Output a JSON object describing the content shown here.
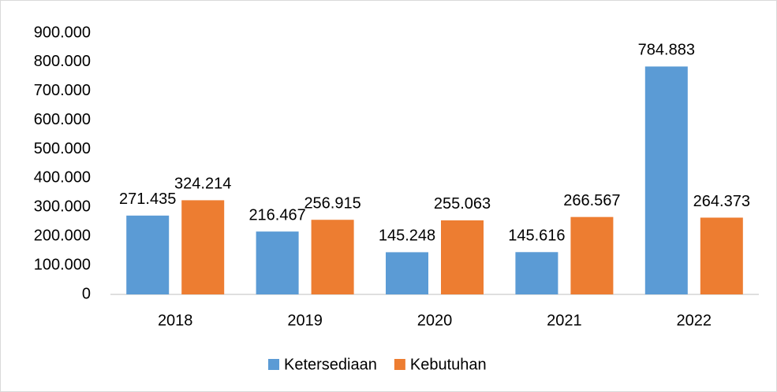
{
  "chart_data": {
    "type": "bar",
    "categories": [
      "2018",
      "2019",
      "2020",
      "2021",
      "2022"
    ],
    "series": [
      {
        "name": "Ketersediaan",
        "color": "#5b9bd5",
        "values": [
          271435,
          216467,
          145248,
          145616,
          784883
        ],
        "value_labels": [
          "271.435",
          "216.467",
          "145.248",
          "145.616",
          "784.883"
        ]
      },
      {
        "name": "Kebutuhan",
        "color": "#ed7d31",
        "values": [
          324214,
          256915,
          255063,
          266567,
          264373
        ],
        "value_labels": [
          "324.214",
          "256.915",
          "255.063",
          "266.567",
          "264.373"
        ]
      }
    ],
    "ylim": [
      0,
      900000
    ],
    "yticks": [
      0,
      {
        "value": 100000,
        "label": "100.000"
      },
      {
        "value": 200000,
        "label": "200.000"
      },
      {
        "value": 300000,
        "label": "300.000"
      },
      {
        "value": 400000,
        "label": "400.000"
      },
      {
        "value": 500000,
        "label": "500.000"
      },
      {
        "value": 600000,
        "label": "600.000"
      },
      {
        "value": 700000,
        "label": "700.000"
      },
      {
        "value": 800000,
        "label": "800.000"
      },
      {
        "value": 900000,
        "label": "900.000"
      }
    ],
    "grid": false,
    "legend": "bottom"
  }
}
